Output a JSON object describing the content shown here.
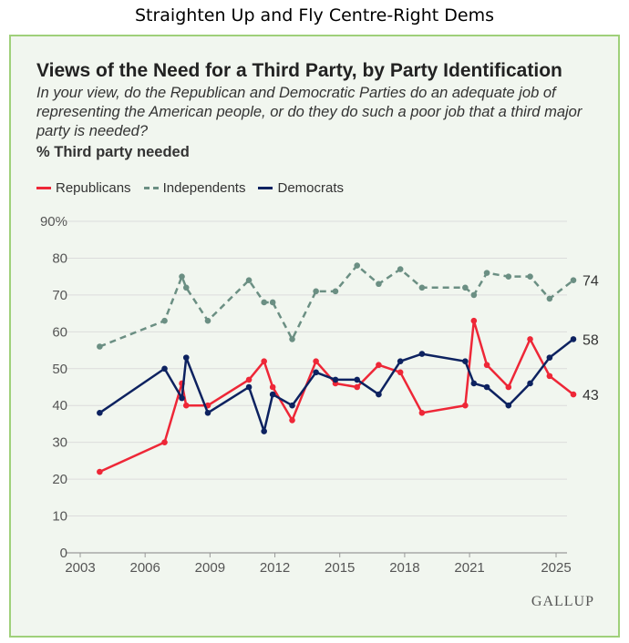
{
  "page_title": "Straighten Up and Fly Centre-Right Dems",
  "logo": "GALLUP",
  "chart_data": {
    "type": "line",
    "title": "Views of the Need for a Third Party, by Party Identification",
    "subtitle": "In your view, do the Republican and Democratic Parties do an adequate job of representing the American people, or do they do such a poor job that a third major party is needed?",
    "ylabel": "% Third party needed",
    "xlim": [
      2003,
      2026.2
    ],
    "ylim": [
      0,
      90
    ],
    "xticks": [
      2003,
      2006,
      2009,
      2012,
      2015,
      2018,
      2021,
      2025
    ],
    "yticks": [
      0,
      10,
      20,
      30,
      40,
      50,
      60,
      70,
      80,
      90
    ],
    "ytick_labels": [
      "0",
      "10",
      "20",
      "30",
      "40",
      "50",
      "60",
      "70",
      "80",
      "90%"
    ],
    "grid": true,
    "legend_position": "top-left",
    "x": [
      2003.9,
      2006.9,
      2007.7,
      2007.9,
      2008.9,
      2010.8,
      2011.5,
      2011.9,
      2012.8,
      2013.9,
      2014.8,
      2015.8,
      2016.8,
      2017.8,
      2018.8,
      2020.8,
      2021.2,
      2021.8,
      2022.8,
      2023.8,
      2024.7,
      2025.8
    ],
    "series": [
      {
        "name": "Republicans",
        "color": "#ee2737",
        "dash": false,
        "values": [
          22,
          30,
          46,
          40,
          40,
          47,
          52,
          45,
          36,
          52,
          46,
          45,
          51,
          49,
          38,
          40,
          63,
          51,
          45,
          58,
          48,
          43
        ],
        "end_label": "43"
      },
      {
        "name": "Independents",
        "color": "#6b8f83",
        "dash": true,
        "values": [
          56,
          63,
          75,
          72,
          63,
          74,
          68,
          68,
          58,
          71,
          71,
          78,
          73,
          77,
          72,
          72,
          70,
          76,
          75,
          75,
          69,
          74
        ],
        "end_label": "74"
      },
      {
        "name": "Democrats",
        "color": "#0d2260",
        "dash": false,
        "values": [
          38,
          50,
          42,
          53,
          38,
          45,
          33,
          43,
          40,
          49,
          47,
          47,
          43,
          52,
          54,
          52,
          46,
          45,
          40,
          46,
          53,
          58
        ],
        "end_label": "58"
      }
    ]
  }
}
